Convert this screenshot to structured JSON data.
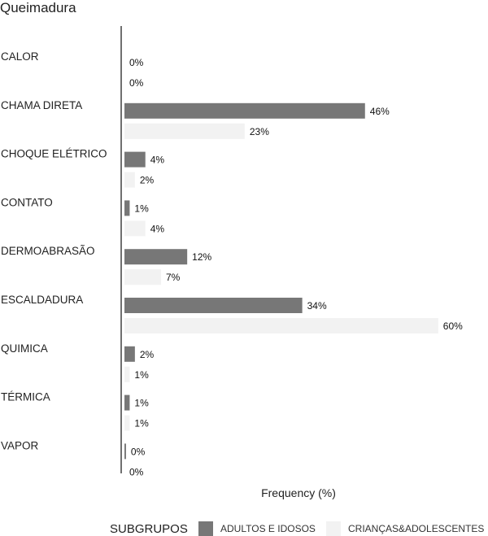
{
  "chart_data": {
    "type": "bar",
    "orientation": "horizontal",
    "title": "Queimadura",
    "xlabel": "Frequency (%)",
    "ylabel": "",
    "categories": [
      "CALOR",
      "CHAMA DIRETA",
      "CHOQUE ELÉTRICO",
      "CONTATO",
      "DERMOABRASÃO",
      "ESCALDADURA",
      "QUIMICA",
      "TÉRMICA",
      "VAPOR"
    ],
    "series": [
      {
        "name": "ADULTOS E IDOSOS",
        "color": "#777777",
        "values": [
          0,
          46,
          4,
          1,
          12,
          34,
          2,
          1,
          0.3
        ],
        "labels": [
          "0%",
          "46%",
          "4%",
          "1%",
          "12%",
          "34%",
          "2%",
          "1%",
          "0%"
        ]
      },
      {
        "name": "CRIANÇAS&ADOLESCENTES",
        "color": "#f2f2f2",
        "values": [
          0,
          23,
          2,
          4,
          7,
          60,
          1,
          1,
          0
        ],
        "labels": [
          "0%",
          "23%",
          "2%",
          "4%",
          "7%",
          "60%",
          "1%",
          "1%",
          "0%"
        ]
      }
    ],
    "xlim": [
      0,
      60
    ],
    "grid": false,
    "legend": {
      "title": "SUBGRUPOS",
      "position": "bottom"
    }
  }
}
